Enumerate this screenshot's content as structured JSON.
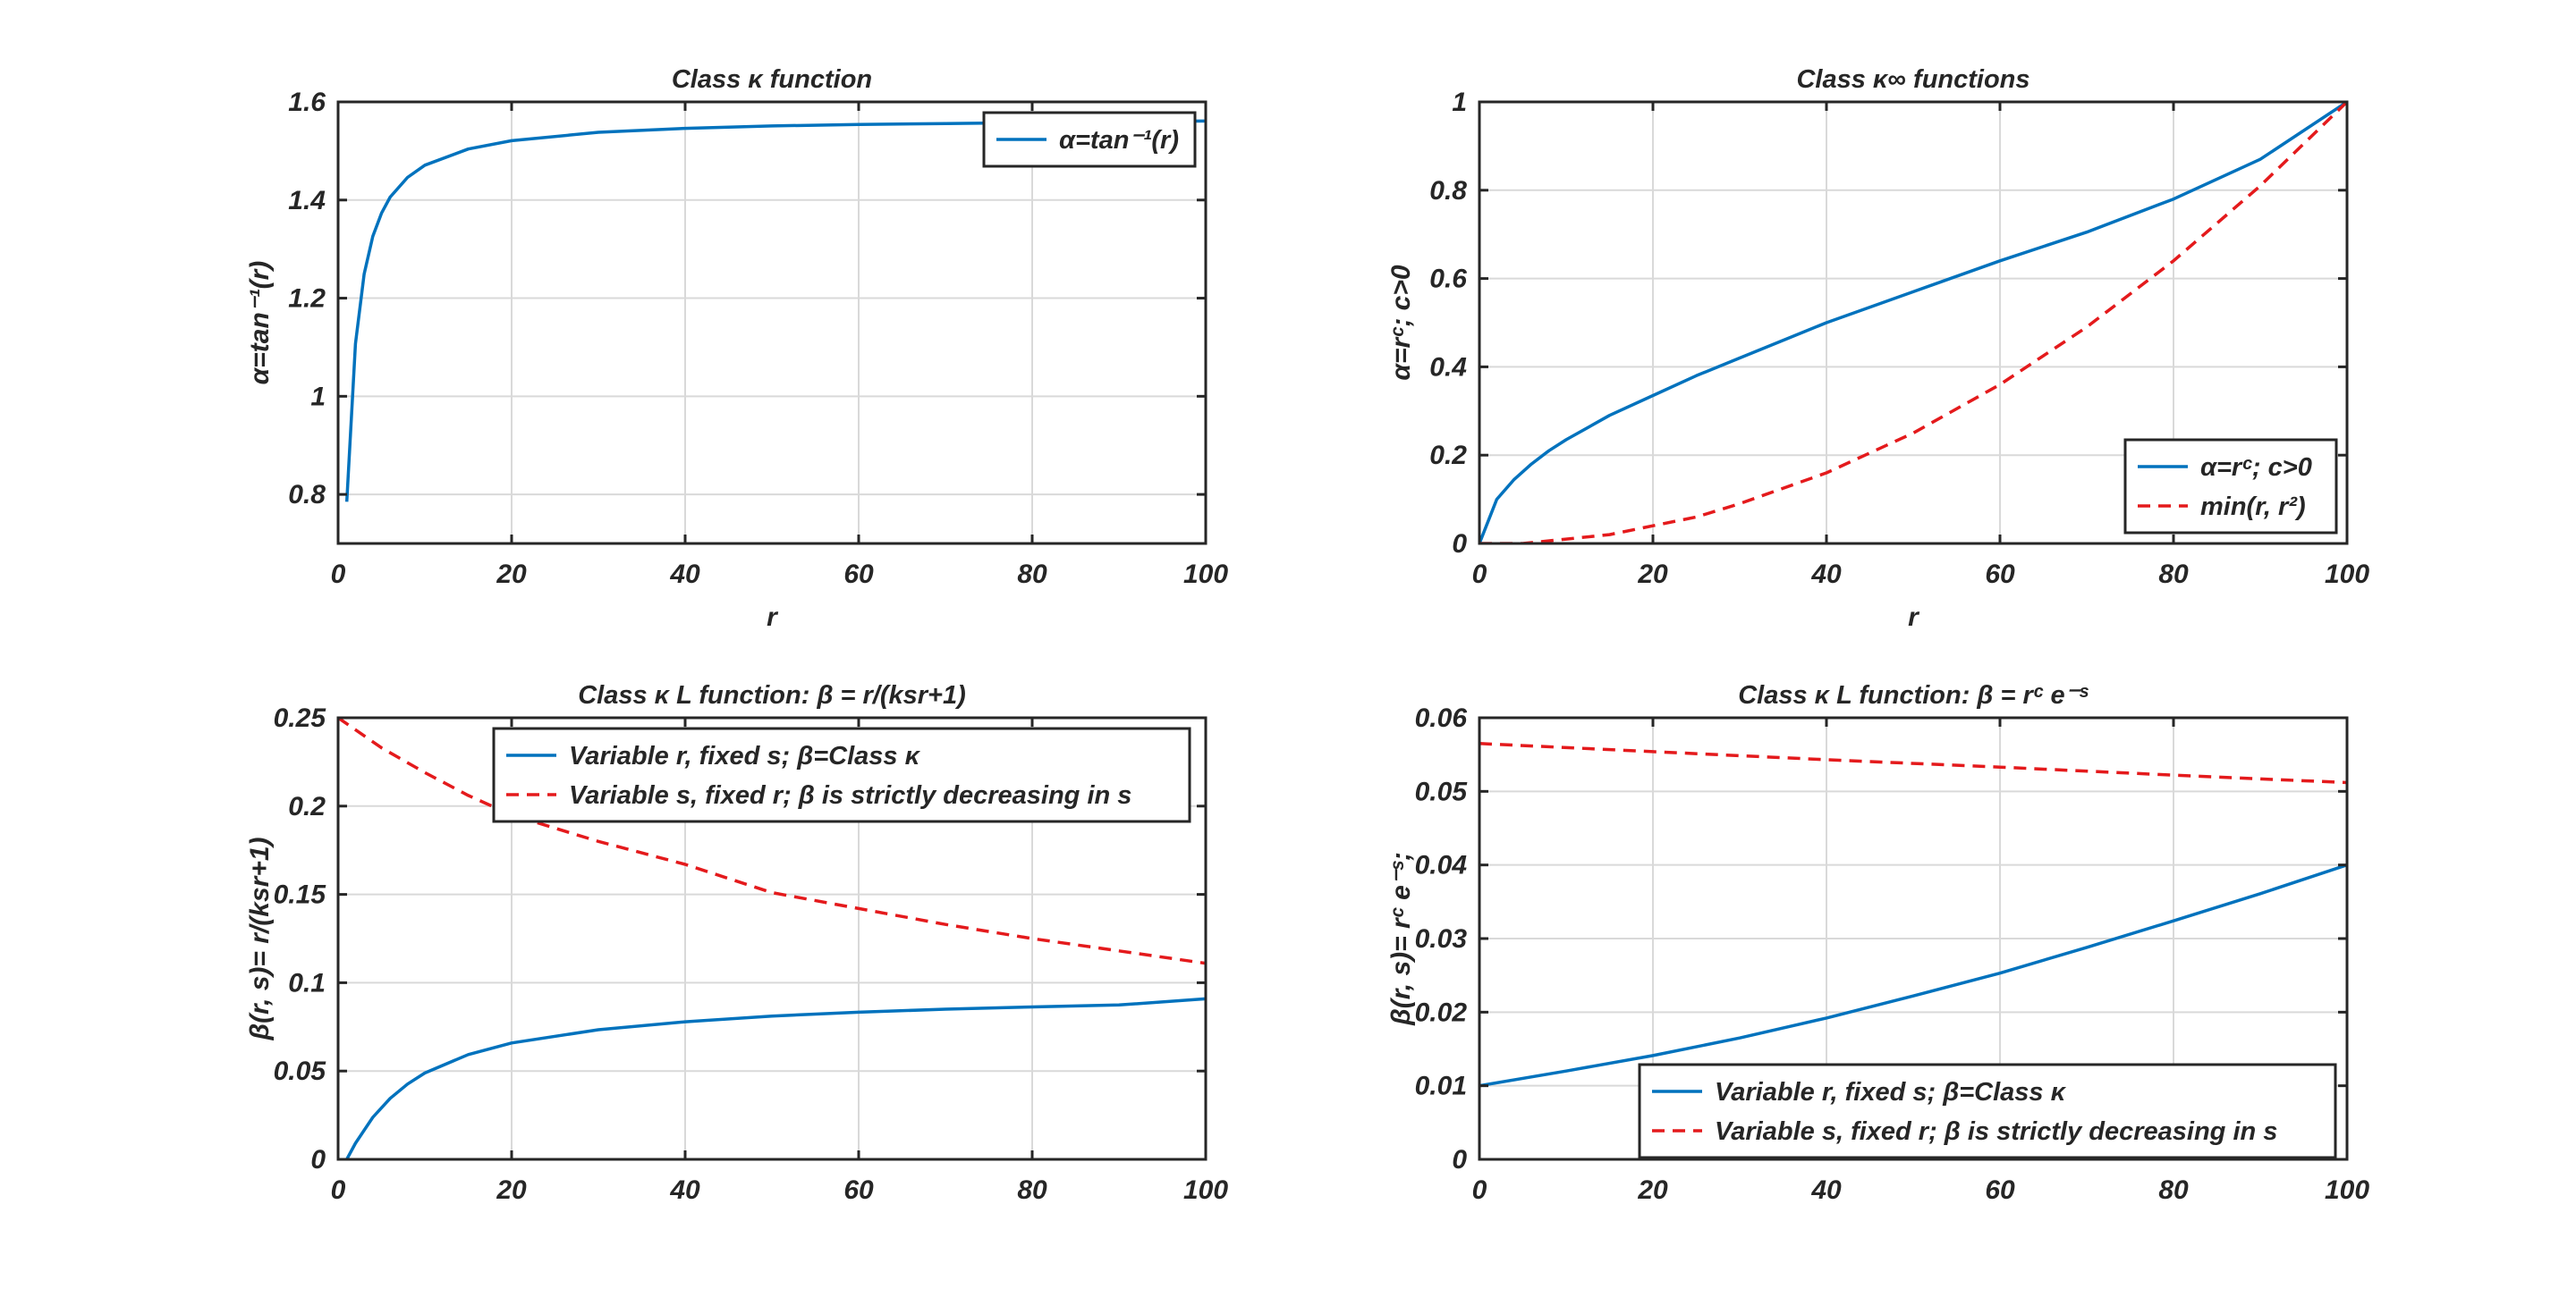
{
  "figure": {
    "background": "#ffffff"
  },
  "chart_data": [
    {
      "id": "p1",
      "type": "line",
      "title": "Class κ function",
      "xlabel": "r",
      "ylabel": "α=tan⁻¹(r)",
      "xlim": [
        0,
        100
      ],
      "ylim": [
        0.7,
        1.6
      ],
      "grid": true,
      "xticks": [
        0,
        20,
        40,
        60,
        80,
        100
      ],
      "xticklabels": [
        "0",
        "20",
        "40",
        "60",
        "80",
        "100"
      ],
      "yticks": [
        0.8,
        1.0,
        1.2,
        1.4,
        1.6
      ],
      "yticklabels": [
        "0.8",
        "1",
        "1.2",
        "1.4",
        "1.6"
      ],
      "legend_position": "top-right",
      "series": [
        {
          "name": "α=tan⁻¹(r)",
          "color": "#0072bd",
          "style": "solid",
          "x": [
            1,
            2,
            3,
            4,
            5,
            6,
            8,
            10,
            15,
            20,
            30,
            40,
            50,
            60,
            70,
            80,
            90,
            100
          ],
          "y": [
            0.785,
            1.107,
            1.249,
            1.326,
            1.373,
            1.406,
            1.446,
            1.471,
            1.504,
            1.521,
            1.538,
            1.546,
            1.551,
            1.554,
            1.556,
            1.558,
            1.56,
            1.561
          ]
        }
      ]
    },
    {
      "id": "p2",
      "type": "line",
      "title": "Class κ∞ functions",
      "xlabel": "r",
      "ylabel": "α=rᶜ; c>0",
      "xlim": [
        0,
        100
      ],
      "ylim": [
        0,
        1
      ],
      "grid": true,
      "xticks": [
        0,
        20,
        40,
        60,
        80,
        100
      ],
      "xticklabels": [
        "0",
        "20",
        "40",
        "60",
        "80",
        "100"
      ],
      "yticks": [
        0,
        0.2,
        0.4,
        0.6,
        0.8,
        1
      ],
      "yticklabels": [
        "0",
        "0.2",
        "0.4",
        "0.6",
        "0.8",
        "1"
      ],
      "legend_position": "bottom-right",
      "series": [
        {
          "name": "α=rᶜ; c>0",
          "color": "#0072bd",
          "style": "solid",
          "x": [
            0,
            1,
            2,
            4,
            6,
            8,
            10,
            15,
            20,
            25,
            30,
            40,
            50,
            60,
            70,
            80,
            90,
            100
          ],
          "y": [
            0,
            0.05,
            0.1,
            0.145,
            0.18,
            0.21,
            0.235,
            0.29,
            0.335,
            0.38,
            0.42,
            0.5,
            0.57,
            0.64,
            0.705,
            0.78,
            0.87,
            1.0
          ]
        },
        {
          "name": "min(r, r²)",
          "color": "#e41a1c",
          "style": "dashed",
          "x": [
            0,
            5,
            10,
            15,
            20,
            25,
            30,
            40,
            50,
            60,
            70,
            80,
            90,
            100
          ],
          "y": [
            0,
            0,
            0.01,
            0.02,
            0.04,
            0.06,
            0.09,
            0.16,
            0.25,
            0.36,
            0.49,
            0.64,
            0.81,
            1.0
          ]
        }
      ]
    },
    {
      "id": "p3",
      "type": "line",
      "title": "Class κ L  function: β = r/(ksr+1)",
      "xlabel": "",
      "ylabel": "β(r, s)= r/(ksr+1)",
      "xlim": [
        0,
        100
      ],
      "ylim": [
        0,
        0.25
      ],
      "grid": true,
      "xticks": [
        0,
        20,
        40,
        60,
        80,
        100
      ],
      "xticklabels": [
        "0",
        "20",
        "40",
        "60",
        "80",
        "100"
      ],
      "yticks": [
        0,
        0.05,
        0.1,
        0.15,
        0.2,
        0.25
      ],
      "yticklabels": [
        "0",
        "0.05",
        "0.1",
        "0.15",
        "0.2",
        "0.25"
      ],
      "legend_position": "top-right",
      "series": [
        {
          "name": "Variable r, fixed s; β=Class κ",
          "color": "#0072bd",
          "style": "solid",
          "x": [
            1,
            2,
            4,
            6,
            8,
            10,
            15,
            20,
            30,
            40,
            50,
            60,
            70,
            80,
            90,
            100
          ],
          "y": [
            0,
            0.0091,
            0.0238,
            0.0345,
            0.0426,
            0.0489,
            0.0593,
            0.0659,
            0.0734,
            0.0779,
            0.0811,
            0.0833,
            0.085,
            0.0863,
            0.0874,
            0.0909
          ]
        },
        {
          "name": "Variable s, fixed r; β is strictly decreasing in s",
          "color": "#e41a1c",
          "style": "dashed",
          "x": [
            0,
            5,
            10,
            15,
            20,
            30,
            40,
            50,
            60,
            70,
            80,
            90,
            100
          ],
          "y": [
            0.25,
            0.233,
            0.219,
            0.206,
            0.195,
            0.18,
            0.167,
            0.151,
            0.142,
            0.133,
            0.125,
            0.118,
            0.111
          ]
        }
      ]
    },
    {
      "id": "p4",
      "type": "line",
      "title": "Class κ L  function: β = rᶜ e⁻ˢ",
      "xlabel": "",
      "ylabel": "β(r, s)= rᶜ e⁻ˢ;",
      "xlim": [
        0,
        100
      ],
      "ylim": [
        0,
        0.06
      ],
      "grid": true,
      "xticks": [
        0,
        20,
        40,
        60,
        80,
        100
      ],
      "xticklabels": [
        "0",
        "20",
        "40",
        "60",
        "80",
        "100"
      ],
      "yticks": [
        0,
        0.01,
        0.02,
        0.03,
        0.04,
        0.05,
        0.06
      ],
      "yticklabels": [
        "0",
        "0.01",
        "0.02",
        "0.03",
        "0.04",
        "0.05",
        "0.06"
      ],
      "legend_position": "bottom-right",
      "series": [
        {
          "name": "Variable r, fixed s; β=Class κ",
          "color": "#0072bd",
          "style": "solid",
          "x": [
            0,
            10,
            20,
            30,
            40,
            50,
            60,
            70,
            80,
            90,
            100
          ],
          "y": [
            0.01,
            0.012,
            0.0141,
            0.0165,
            0.0192,
            0.0222,
            0.0253,
            0.0288,
            0.0324,
            0.0361,
            0.04
          ]
        },
        {
          "name": "Variable s, fixed r; β is strictly decreasing in s",
          "color": "#e41a1c",
          "style": "dashed",
          "x": [
            0,
            20,
            40,
            60,
            80,
            100
          ],
          "y": [
            0.0565,
            0.0554,
            0.0543,
            0.0533,
            0.0522,
            0.0512
          ]
        }
      ]
    }
  ]
}
